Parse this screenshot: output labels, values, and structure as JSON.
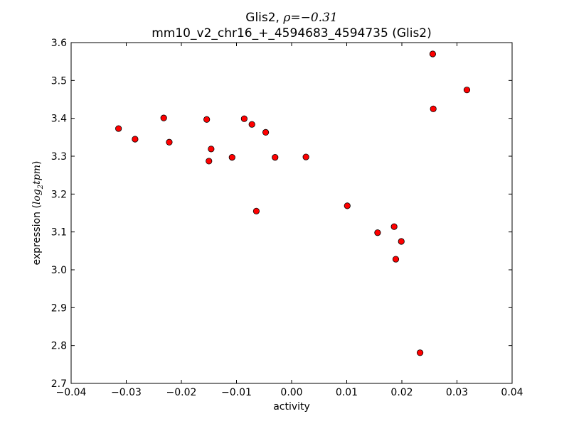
{
  "chart_data": {
    "type": "scatter",
    "title_gene": "Glis2, ",
    "title_rho_symbol": "ρ",
    "title_rho_value": "=−0.31",
    "title_line2": "mm10_v2_chr16_+_4594683_4594735 (Glis2)",
    "xlabel": "activity",
    "ylabel_text": "expression (",
    "ylabel_math": "log",
    "ylabel_sub": "2",
    "ylabel_math2": "tpm",
    "ylabel_close": ")",
    "xlim": [
      -0.04,
      0.04
    ],
    "ylim": [
      2.7,
      3.6
    ],
    "xticks": [
      -0.04,
      -0.03,
      -0.02,
      -0.01,
      0.0,
      0.01,
      0.02,
      0.03,
      0.04
    ],
    "xtick_labels": [
      "−0.04",
      "−0.03",
      "−0.02",
      "−0.01",
      "0.00",
      "0.01",
      "0.02",
      "0.03",
      "0.04"
    ],
    "yticks": [
      2.7,
      2.8,
      2.9,
      3.0,
      3.1,
      3.2,
      3.3,
      3.4,
      3.5,
      3.6
    ],
    "ytick_labels": [
      "2.7",
      "2.8",
      "2.9",
      "3.0",
      "3.1",
      "3.2",
      "3.3",
      "3.4",
      "3.5",
      "3.6"
    ],
    "grid": false,
    "marker_color": "#ff0000",
    "marker_edge": "#000000",
    "points": [
      {
        "x": -0.0314,
        "y": 3.373
      },
      {
        "x": -0.0284,
        "y": 3.345
      },
      {
        "x": -0.0232,
        "y": 3.401
      },
      {
        "x": -0.0222,
        "y": 3.337
      },
      {
        "x": -0.0154,
        "y": 3.397
      },
      {
        "x": -0.015,
        "y": 3.287
      },
      {
        "x": -0.0146,
        "y": 3.319
      },
      {
        "x": -0.0108,
        "y": 3.297
      },
      {
        "x": -0.0086,
        "y": 3.399
      },
      {
        "x": -0.0072,
        "y": 3.384
      },
      {
        "x": -0.0064,
        "y": 3.155
      },
      {
        "x": -0.0047,
        "y": 3.363
      },
      {
        "x": -0.003,
        "y": 3.297
      },
      {
        "x": 0.0026,
        "y": 3.298
      },
      {
        "x": 0.0101,
        "y": 3.169
      },
      {
        "x": 0.0156,
        "y": 3.098
      },
      {
        "x": 0.0186,
        "y": 3.114
      },
      {
        "x": 0.0189,
        "y": 3.028
      },
      {
        "x": 0.0199,
        "y": 3.075
      },
      {
        "x": 0.0233,
        "y": 2.781
      },
      {
        "x": 0.0256,
        "y": 3.57
      },
      {
        "x": 0.0257,
        "y": 3.425
      },
      {
        "x": 0.0318,
        "y": 3.475
      }
    ]
  }
}
